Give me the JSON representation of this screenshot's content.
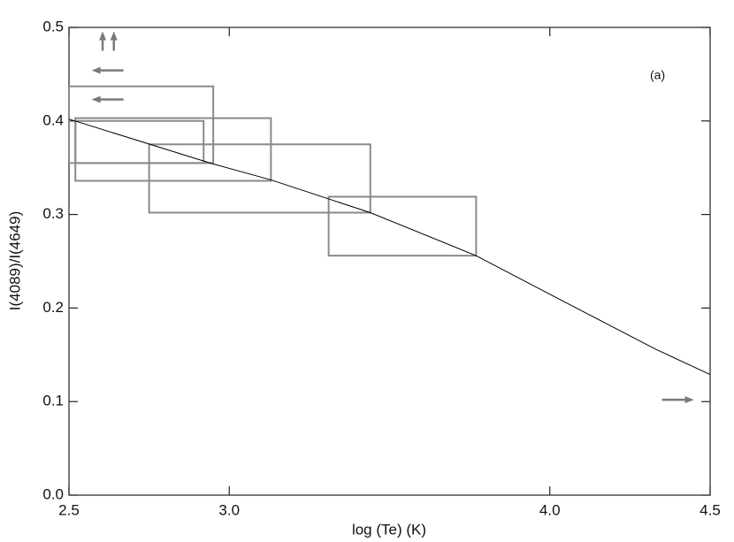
{
  "chart_data": {
    "type": "line",
    "xlabel": "log (Te) (K)",
    "ylabel": "I(4089)/I(4649)",
    "annotation": "(a)",
    "xlim": [
      2.5,
      4.5
    ],
    "ylim": [
      0,
      0.5
    ],
    "xticks": [
      2.5,
      {
        "value": 3,
        "label": "3.0"
      },
      {
        "value": 4,
        "label": "4.0"
      },
      4.5
    ],
    "yticks": [
      {
        "value": 0,
        "label": "0.0"
      },
      0.1,
      0.2,
      0.3,
      0.4,
      0.5
    ],
    "series": [
      {
        "color": "#000000",
        "x": [
          2.5,
          2.95,
          3.13,
          3.44,
          3.77,
          4.01,
          4.33,
          4.5
        ],
        "values": [
          0.402,
          0.354,
          0.337,
          0.302,
          0.256,
          0.213,
          0.156,
          0.129
        ]
      }
    ],
    "boxes_color": "#8a8a8a",
    "boxes": [
      {
        "x": [
          2.5,
          2.95
        ],
        "y": [
          0.355,
          0.437
        ]
      },
      {
        "x": [
          2.52,
          2.92
        ],
        "y": [
          0.355,
          0.4
        ]
      },
      {
        "x": [
          2.52,
          3.13
        ],
        "y": [
          0.336,
          0.403
        ]
      },
      {
        "x": [
          2.75,
          3.44
        ],
        "y": [
          0.302,
          0.375
        ]
      },
      {
        "x": [
          3.31,
          3.77
        ],
        "y": [
          0.256,
          0.319
        ]
      }
    ],
    "arrows_color": "#7a7a7a",
    "arrows": [
      {
        "x": 2.605,
        "y": 0.475,
        "direction": "up"
      },
      {
        "x": 2.64,
        "y": 0.475,
        "direction": "up"
      },
      {
        "x": 2.67,
        "y": 0.454,
        "direction": "left"
      },
      {
        "x": 2.67,
        "y": 0.423,
        "direction": "left"
      },
      {
        "x": 4.35,
        "y": 0.102,
        "direction": "right"
      }
    ]
  }
}
